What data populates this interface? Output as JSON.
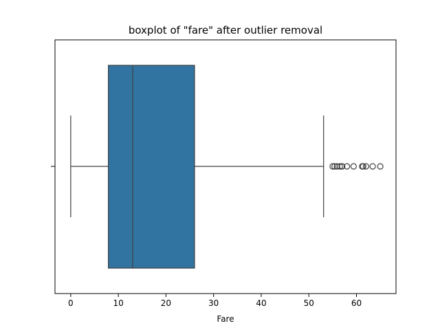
{
  "chart_data": {
    "type": "boxplot",
    "title": "boxplot of \"fare\" after outlier removal",
    "xlabel": "Fare",
    "ylabel": "",
    "orientation": "horizontal",
    "xlim": [
      -3.3,
      68.3
    ],
    "xticks": [
      0,
      10,
      20,
      30,
      40,
      50,
      60
    ],
    "grid": false,
    "legend": "none",
    "box_color": "#3274a1",
    "line_color": "#3f3f3f",
    "box": {
      "whisker_low": 0,
      "q1": 7.9,
      "median": 13.0,
      "q3": 26.0,
      "whisker_high": 53.1
    },
    "outliers": [
      55.0,
      55.4,
      55.9,
      56.5,
      56.9,
      57.0,
      58.0,
      59.4,
      61.2,
      61.4,
      62.0,
      63.4,
      65.0
    ]
  }
}
